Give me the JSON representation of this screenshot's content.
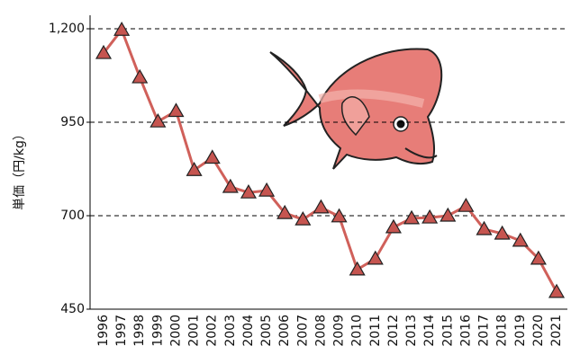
{
  "chart_data": {
    "type": "line",
    "y_label": "単価（円/kg）",
    "categories": [
      "1996",
      "1997",
      "1998",
      "1999",
      "2000",
      "2001",
      "2002",
      "2003",
      "2004",
      "2005",
      "2006",
      "2007",
      "2008",
      "2009",
      "2010",
      "2011",
      "2012",
      "2013",
      "2014",
      "2015",
      "2016",
      "2017",
      "2018",
      "2019",
      "2020",
      "2021"
    ],
    "series": [
      {
        "color": "#d0605a",
        "values": [
          1135,
          1197,
          1070,
          952,
          980,
          822,
          855,
          777,
          762,
          767,
          707,
          690,
          722,
          698,
          556,
          585,
          669,
          693,
          695,
          700,
          726,
          664,
          652,
          633,
          585,
          496
        ]
      }
    ],
    "ylim": [
      450,
      1200
    ],
    "yticks": [
      450,
      700,
      950,
      {
        "value": 1200,
        "label": "1,200"
      }
    ],
    "grid": true
  }
}
